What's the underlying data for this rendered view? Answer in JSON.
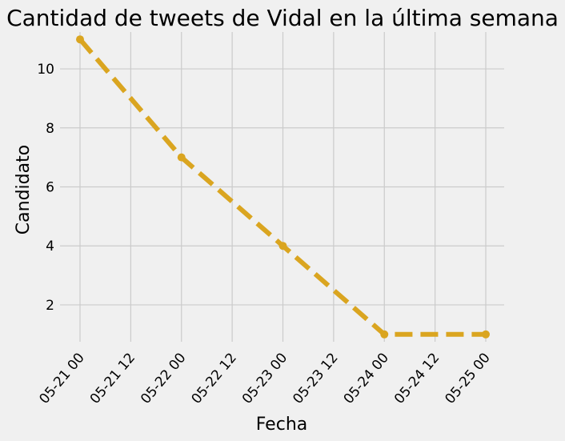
{
  "chart_data": {
    "type": "line",
    "title": "Cantidad de tweets de Vidal en la última semana",
    "xlabel": "Fecha",
    "ylabel": "Candidato",
    "x_tick_labels": [
      "05-21 00",
      "05-21 12",
      "05-22 00",
      "05-22 12",
      "05-23 00",
      "05-23 12",
      "05-24 00",
      "05-24 12",
      "05-25 00"
    ],
    "y_tick_labels": [
      "2",
      "4",
      "6",
      "8",
      "10"
    ],
    "ylim": [
      0.75,
      11.25
    ],
    "grid": true,
    "series": [
      {
        "x": [
          "2021-05-21",
          "2021-05-22",
          "2021-05-23",
          "2021-05-24",
          "2021-05-25"
        ],
        "values": [
          11,
          7,
          4,
          1,
          1
        ],
        "color": "#daa520",
        "style": "dashed",
        "marker": "circle"
      }
    ]
  }
}
